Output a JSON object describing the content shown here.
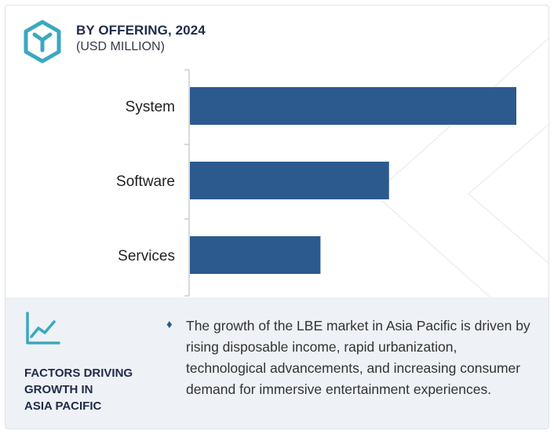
{
  "header": {
    "title": "BY OFFERING, 2024",
    "subtitle": "(USD MILLION)"
  },
  "colors": {
    "bar": "#2d5a8e",
    "accent": "#3aa8c1",
    "panel_bg": "#eef1f5",
    "heading": "#1f2b4a"
  },
  "icons": {
    "logo": "hexagon-logo-icon",
    "trend": "trend-chart-icon",
    "bullet": "diamond-bullet-icon"
  },
  "chart_data": {
    "type": "bar",
    "orientation": "horizontal",
    "categories": [
      "System",
      "Software",
      "Services"
    ],
    "values": [
      100,
      61,
      40
    ],
    "xlim": [
      0,
      100
    ],
    "grid": false,
    "legend": "none"
  },
  "factors": {
    "heading": "FACTORS DRIVING GROWTH IN ASIA PACIFIC",
    "heading_lines": [
      "FACTORS DRIVING",
      "GROWTH IN",
      "ASIA PACIFIC"
    ],
    "bullet_symbol": "♦",
    "text": "The growth of the LBE market in Asia Pacific is driven by rising disposable income, rapid urbanization, technological advancements, and increasing consumer demand for immersive entertainment experiences."
  }
}
